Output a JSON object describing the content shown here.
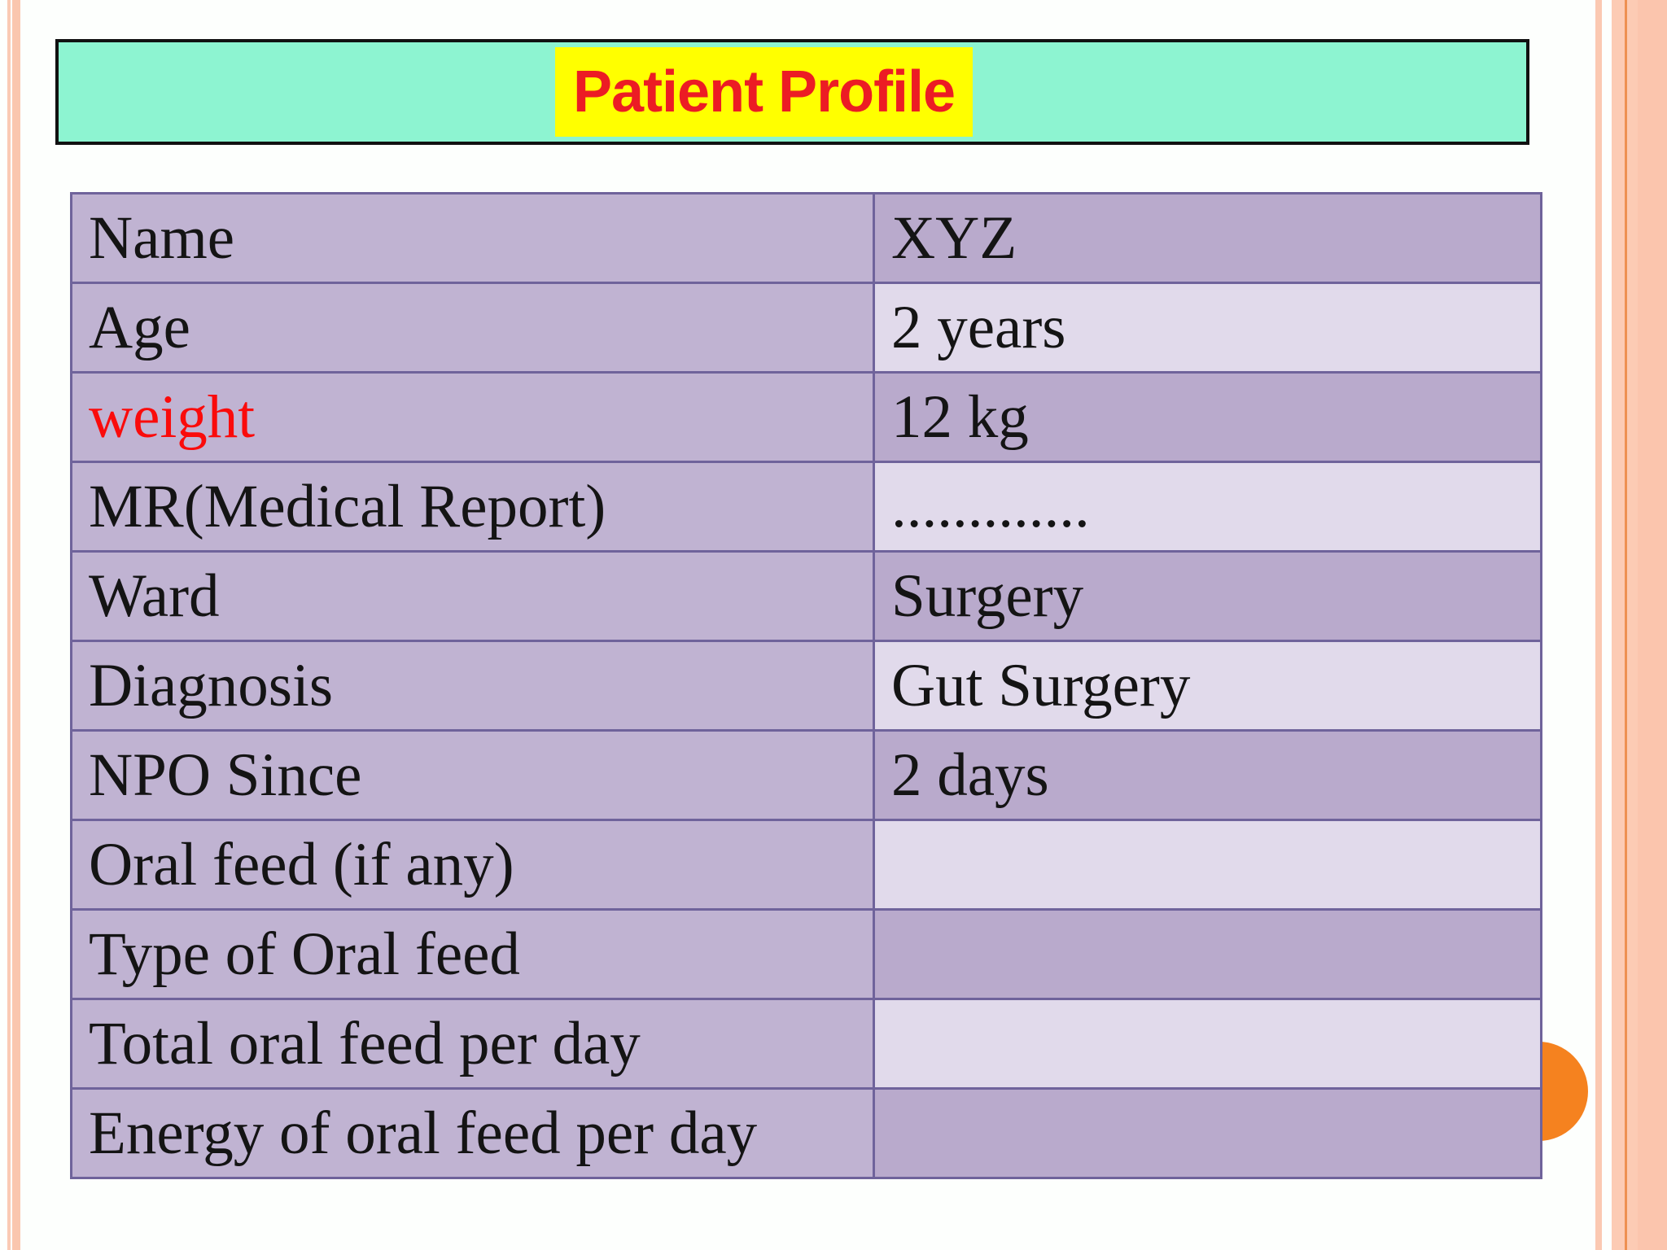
{
  "title": {
    "text": "Patient Profile"
  },
  "table": {
    "rows": [
      {
        "label": "Name",
        "value": "XYZ"
      },
      {
        "label": "Age",
        "value": "2 years"
      },
      {
        "label": "weight",
        "value": "12 kg"
      },
      {
        "label": "MR(Medical Report)",
        "value": "............."
      },
      {
        "label": "Ward",
        "value": "Surgery"
      },
      {
        "label": "Diagnosis",
        "value": "Gut Surgery"
      },
      {
        "label": "NPO Since",
        "value": "2 days"
      },
      {
        "label": "Oral feed (if any)",
        "value": ""
      },
      {
        "label": "Type of Oral feed",
        "value": ""
      },
      {
        "label": "Total oral feed per day",
        "value": ""
      },
      {
        "label": "Energy of oral feed per day",
        "value": ""
      }
    ]
  },
  "colors": {
    "title_bar_fill": "#8DF4D1",
    "title_highlight": "#FFFF00",
    "title_text": "#EC1C24",
    "weight_label_text": "#FA0B0B",
    "table_border": "#6F639B",
    "label_column_fill": "#C0B3D2",
    "value_medium_fill": "#B9AACC",
    "value_light_fill": "#E1DAEB",
    "edge_stripe_peach": "#FAC6AE",
    "edge_accent_orange": "#EE9051",
    "decorative_circle": "#F5821F",
    "background": "#FDFFFD"
  }
}
